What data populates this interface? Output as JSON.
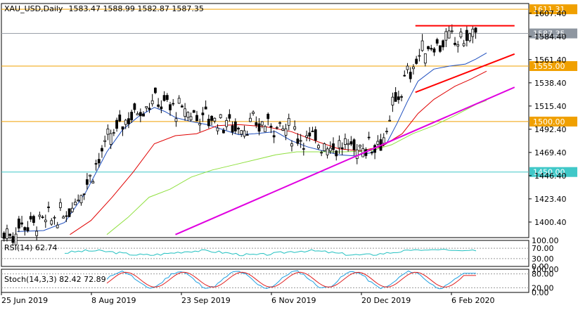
{
  "chart_data": {
    "type": "candlestick",
    "symbol_label": "XAU_USD,Daily",
    "ohlc_label": "1583.47 1588.99 1582.87 1587.35",
    "last_price": 1587.35,
    "last_price_label": "1587.35",
    "ylim": [
      1385,
      1617
    ],
    "y_ticks": [
      "1607.40",
      "1584.40",
      "1561.40",
      "1538.40",
      "1515.40",
      "1492.40",
      "1469.40",
      "1446.40",
      "1423.40",
      "1400.40"
    ],
    "y_tick_values": [
      1607.4,
      1584.4,
      1561.4,
      1538.4,
      1515.4,
      1492.4,
      1469.4,
      1446.4,
      1423.4,
      1400.4
    ],
    "x_tick_labels": [
      "25 Jun 2019",
      "8 Aug 2019",
      "23 Sep 2019",
      "6 Nov 2019",
      "20 Dec 2019",
      "6 Feb 2020"
    ],
    "horizontal_levels": [
      {
        "value": 1611.31,
        "label": "1611.31",
        "color": "#f0a000"
      },
      {
        "value": 1555.0,
        "label": "1555.00",
        "color": "#f0a000"
      },
      {
        "value": 1500.0,
        "label": "1500.00",
        "color": "#f0a000"
      },
      {
        "value": 1450.0,
        "label": "1450.00",
        "color": "#40c8c8"
      }
    ],
    "trendlines": [
      {
        "color": "#ff0000",
        "from": [
          0.785,
          1595.0
        ],
        "to": [
          1.0,
          1595.0
        ]
      },
      {
        "color": "#ff0000",
        "from": [
          0.785,
          1529.0
        ],
        "to": [
          1.0,
          1567.0
        ]
      },
      {
        "color": "#e000e0",
        "from": [
          0.33,
          1388.0
        ],
        "to": [
          1.0,
          1534.0
        ]
      }
    ],
    "moving_averages": [
      {
        "color": "#1f4fbf",
        "points": [
          [
            0.03,
            1391
          ],
          [
            0.08,
            1392
          ],
          [
            0.12,
            1400
          ],
          [
            0.16,
            1430
          ],
          [
            0.2,
            1470
          ],
          [
            0.23,
            1492
          ],
          [
            0.26,
            1505
          ],
          [
            0.29,
            1514
          ],
          [
            0.31,
            1510
          ],
          [
            0.33,
            1504
          ],
          [
            0.36,
            1500
          ],
          [
            0.39,
            1497
          ],
          [
            0.42,
            1492
          ],
          [
            0.45,
            1487
          ],
          [
            0.48,
            1488
          ],
          [
            0.52,
            1490
          ],
          [
            0.55,
            1481
          ],
          [
            0.58,
            1475
          ],
          [
            0.61,
            1471
          ],
          [
            0.64,
            1467
          ],
          [
            0.67,
            1466
          ],
          [
            0.7,
            1469
          ],
          [
            0.73,
            1478
          ],
          [
            0.75,
            1498
          ],
          [
            0.77,
            1520
          ],
          [
            0.79,
            1540
          ],
          [
            0.82,
            1552
          ],
          [
            0.85,
            1555
          ],
          [
            0.88,
            1557
          ],
          [
            0.9,
            1562
          ],
          [
            0.92,
            1568
          ]
        ]
      },
      {
        "color": "#e00000",
        "points": [
          [
            0.13,
            1388
          ],
          [
            0.17,
            1402
          ],
          [
            0.21,
            1425
          ],
          [
            0.25,
            1450
          ],
          [
            0.29,
            1478
          ],
          [
            0.33,
            1486
          ],
          [
            0.37,
            1488
          ],
          [
            0.41,
            1496
          ],
          [
            0.45,
            1497
          ],
          [
            0.5,
            1495
          ],
          [
            0.55,
            1490
          ],
          [
            0.6,
            1480
          ],
          [
            0.64,
            1473
          ],
          [
            0.68,
            1471
          ],
          [
            0.72,
            1475
          ],
          [
            0.76,
            1488
          ],
          [
            0.79,
            1508
          ],
          [
            0.82,
            1522
          ],
          [
            0.86,
            1535
          ],
          [
            0.89,
            1542
          ],
          [
            0.92,
            1550
          ]
        ]
      },
      {
        "color": "#90e040",
        "points": [
          [
            0.2,
            1388
          ],
          [
            0.24,
            1405
          ],
          [
            0.28,
            1425
          ],
          [
            0.32,
            1433
          ],
          [
            0.36,
            1445
          ],
          [
            0.4,
            1452
          ],
          [
            0.44,
            1457
          ],
          [
            0.48,
            1462
          ],
          [
            0.52,
            1467
          ],
          [
            0.56,
            1470
          ],
          [
            0.6,
            1470
          ],
          [
            0.65,
            1470
          ],
          [
            0.7,
            1471
          ],
          [
            0.74,
            1477
          ],
          [
            0.78,
            1488
          ],
          [
            0.82,
            1496
          ],
          [
            0.86,
            1506
          ],
          [
            0.9,
            1517
          ],
          [
            0.92,
            1521
          ]
        ]
      }
    ],
    "rsi": {
      "label": "RSI(14) 62.74",
      "value": 62.74,
      "levels": [
        70,
        30
      ],
      "axis_labels": [
        "100.00",
        "70.00",
        "30.00",
        "0.00"
      ],
      "ylim": [
        0,
        100
      ],
      "color": "#20c0c0"
    },
    "stochastic": {
      "label": "Stoch(14,3,3) 82.42 72.89",
      "main": 82.42,
      "signal": 72.89,
      "levels": [
        80,
        20
      ],
      "axis_labels": [
        "100.00",
        "80.00",
        "20.00",
        "0.00"
      ],
      "ylim": [
        0,
        100
      ],
      "main_color": "#20a0e0",
      "signal_color": "#e02020"
    }
  }
}
